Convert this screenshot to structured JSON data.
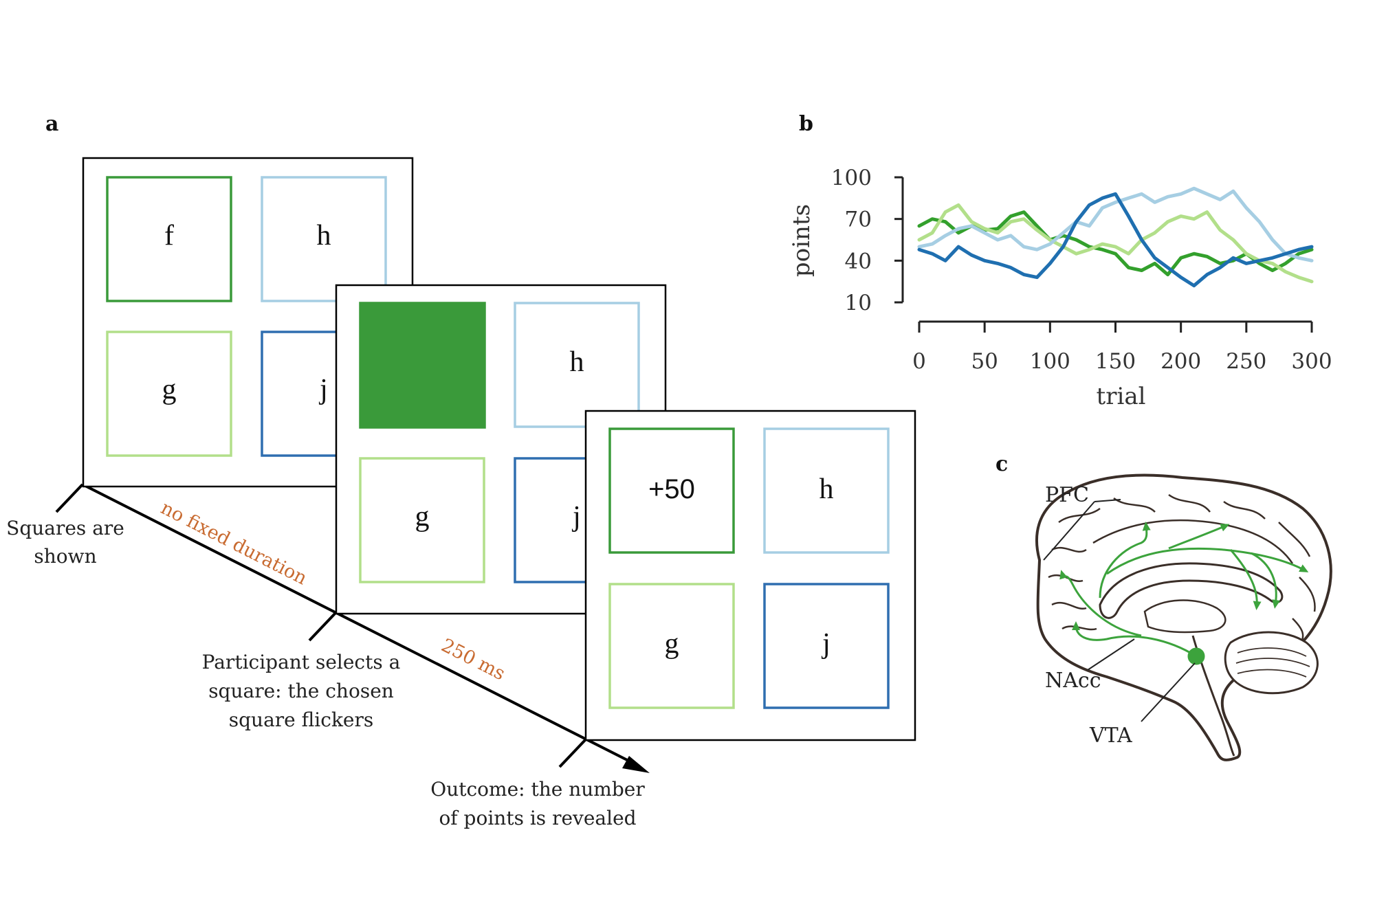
{
  "colors": {
    "dark_green": "#3a9a3a",
    "light_green": "#b2df8a",
    "light_blue": "#a6cee3",
    "dark_blue": "#2f6eb0",
    "timing_orange": "#c86a30",
    "brain_outline": "#3a2e28",
    "pathway_green": "#3ca33c"
  },
  "panel_a": {
    "label": "a",
    "screen1": {
      "f": "f",
      "h": "h",
      "g": "g",
      "j": "j"
    },
    "screen2": {
      "h": "h",
      "g": "g",
      "j": "j"
    },
    "screen3": {
      "reward": "+50",
      "h": "h",
      "g": "g",
      "j": "j"
    },
    "timeline": {
      "step1_line1": "Squares are",
      "step1_line2": "shown",
      "interval1": "no fixed duration",
      "step2_line1": "Participant selects a",
      "step2_line2": "square: the chosen",
      "step2_line3": "square flickers",
      "interval2": "250 ms",
      "step3_line1": "Outcome: the number",
      "step3_line2": "of points is revealed"
    }
  },
  "panel_b": {
    "label": "b"
  },
  "chart_data": {
    "type": "line",
    "xlabel": "trial",
    "ylabel": "points",
    "xlim": [
      0,
      300
    ],
    "ylim": [
      10,
      100
    ],
    "xticks": [
      0,
      50,
      100,
      150,
      200,
      250,
      300
    ],
    "yticks": [
      10,
      40,
      70,
      100
    ],
    "grid": false,
    "series": [
      {
        "color": "#33a02c",
        "x": [
          0,
          10,
          20,
          30,
          40,
          50,
          60,
          70,
          80,
          90,
          100,
          110,
          120,
          130,
          140,
          150,
          160,
          170,
          180,
          190,
          200,
          210,
          220,
          230,
          240,
          250,
          260,
          270,
          280,
          290,
          300
        ],
        "y": [
          65,
          70,
          68,
          60,
          65,
          62,
          63,
          72,
          75,
          65,
          55,
          58,
          55,
          50,
          48,
          45,
          35,
          33,
          38,
          30,
          42,
          45,
          43,
          38,
          40,
          45,
          38,
          33,
          38,
          45,
          48
        ]
      },
      {
        "color": "#b2df8a",
        "x": [
          0,
          10,
          20,
          30,
          40,
          50,
          60,
          70,
          80,
          90,
          100,
          110,
          120,
          130,
          140,
          150,
          160,
          170,
          180,
          190,
          200,
          210,
          220,
          230,
          240,
          250,
          260,
          270,
          280,
          290,
          300
        ],
        "y": [
          55,
          60,
          75,
          80,
          68,
          63,
          60,
          68,
          70,
          62,
          55,
          50,
          45,
          48,
          52,
          50,
          45,
          55,
          60,
          68,
          72,
          70,
          75,
          62,
          55,
          45,
          40,
          38,
          32,
          28,
          25
        ]
      },
      {
        "color": "#a6cee3",
        "x": [
          0,
          10,
          20,
          30,
          40,
          50,
          60,
          70,
          80,
          90,
          100,
          110,
          120,
          130,
          140,
          150,
          160,
          170,
          180,
          190,
          200,
          210,
          220,
          230,
          240,
          250,
          260,
          270,
          280,
          290,
          300
        ],
        "y": [
          50,
          52,
          58,
          63,
          65,
          60,
          55,
          58,
          50,
          48,
          52,
          60,
          68,
          65,
          78,
          82,
          85,
          88,
          82,
          86,
          88,
          92,
          88,
          84,
          90,
          78,
          68,
          55,
          45,
          42,
          40
        ]
      },
      {
        "color": "#1f6fb0",
        "x": [
          0,
          10,
          20,
          30,
          40,
          50,
          60,
          70,
          80,
          90,
          100,
          110,
          120,
          130,
          140,
          150,
          160,
          170,
          180,
          190,
          200,
          210,
          220,
          230,
          240,
          250,
          260,
          270,
          280,
          290,
          300
        ],
        "y": [
          48,
          45,
          40,
          50,
          44,
          40,
          38,
          35,
          30,
          28,
          38,
          50,
          68,
          80,
          85,
          88,
          72,
          55,
          42,
          35,
          28,
          22,
          30,
          35,
          42,
          38,
          40,
          42,
          45,
          48,
          50
        ]
      }
    ]
  },
  "panel_c": {
    "label": "c",
    "pfc": "PFC",
    "nacc": "NAcc",
    "vta": "VTA"
  }
}
